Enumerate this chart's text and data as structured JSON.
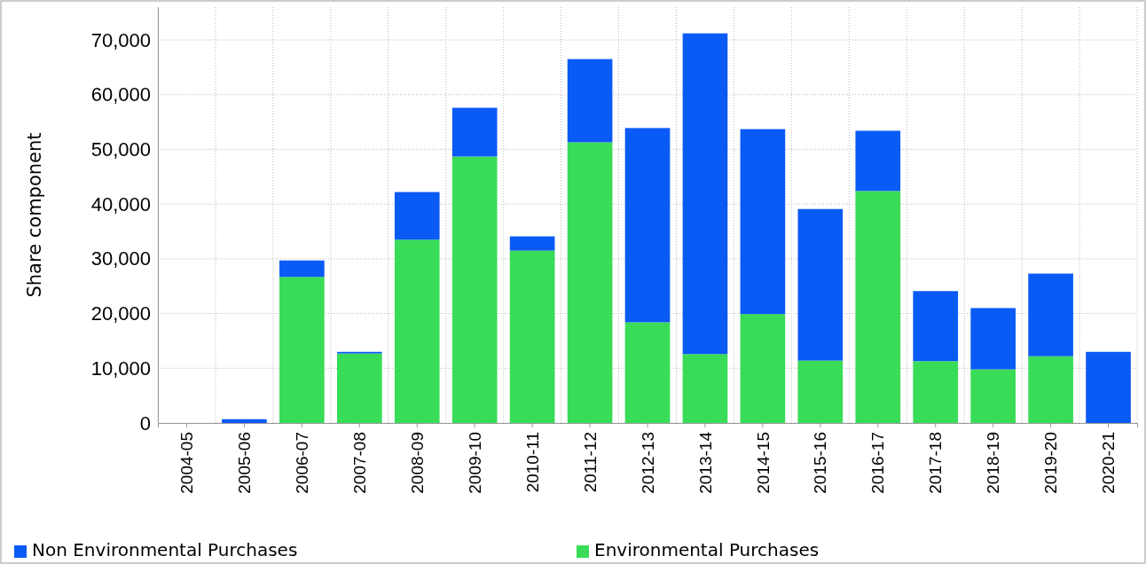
{
  "chart_data": {
    "type": "bar",
    "stacked": true,
    "ylabel": "Share component",
    "categories": [
      "2004-05",
      "2005-06",
      "2006-07",
      "2007-08",
      "2008-09",
      "2009-10",
      "2010-11",
      "2011-12",
      "2012-13",
      "2013-14",
      "2014-15",
      "2015-16",
      "2016-17",
      "2017-18",
      "2018-19",
      "2019-20",
      "2020-21"
    ],
    "series": [
      {
        "name": "Environmental Purchases",
        "color": "#38dc57",
        "values": [
          0,
          0,
          26700,
          12700,
          33500,
          48700,
          31500,
          51300,
          18400,
          12600,
          19900,
          11400,
          42400,
          11300,
          9800,
          12200,
          0
        ]
      },
      {
        "name": "Non Environmental Purchases",
        "color": "#0a5af5",
        "values": [
          0,
          700,
          3000,
          300,
          8700,
          8900,
          2600,
          15200,
          35500,
          58600,
          33800,
          27700,
          11000,
          12800,
          11200,
          15100,
          13000
        ]
      }
    ],
    "ylim": [
      0,
      76000
    ],
    "yticks": [
      {
        "value": 0,
        "label": "0"
      },
      {
        "value": 10000,
        "label": "10,000"
      },
      {
        "value": 20000,
        "label": "20,000"
      },
      {
        "value": 30000,
        "label": "30,000"
      },
      {
        "value": 40000,
        "label": "40,000"
      },
      {
        "value": 50000,
        "label": "50,000"
      },
      {
        "value": 60000,
        "label": "60,000"
      },
      {
        "value": 70000,
        "label": "70,000"
      }
    ],
    "grid": true,
    "legend": "bottom"
  }
}
